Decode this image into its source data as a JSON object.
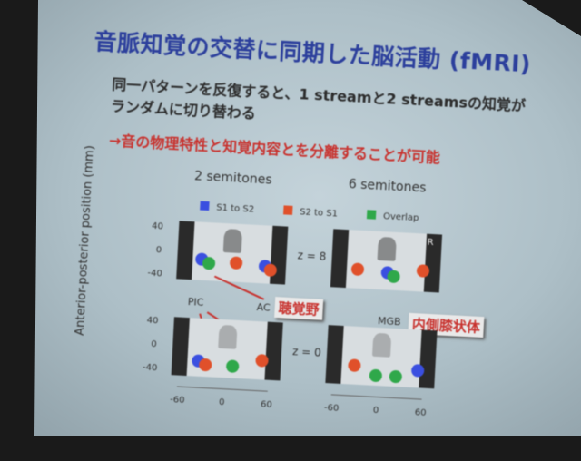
{
  "slide": {
    "title": "音脈知覚の交替に同期した脳活動 (fMRI)",
    "body_line1": "同一パターンを反復すると、1 streamと2 streamsの知覚が",
    "body_line2": "ランダムに切り替わる",
    "conclusion": "→音の物理特性と知覚内容とを分離することが可能"
  },
  "figure": {
    "column_titles": [
      "2 semitones",
      "6 semitones"
    ],
    "legend": [
      {
        "label": "S1 to S2",
        "color": "#3a4fe0"
      },
      {
        "label": "S2 to S1",
        "color": "#e0502a"
      },
      {
        "label": "Overlap",
        "color": "#2fa84a"
      }
    ],
    "y_axis_label": "Anterior-posterior position (mm)",
    "y_ticks": [
      "40",
      "0",
      "-40"
    ],
    "x_ticks": [
      "-60",
      "0",
      "60"
    ],
    "slice_labels": [
      "z = 8",
      "z = 0"
    ],
    "orientation_label": "R",
    "annotations": {
      "pic": "PIC",
      "ac": "AC",
      "mgb": "MGB",
      "ac_callout": "聴覚野",
      "mgb_callout": "内側膝状体"
    }
  }
}
